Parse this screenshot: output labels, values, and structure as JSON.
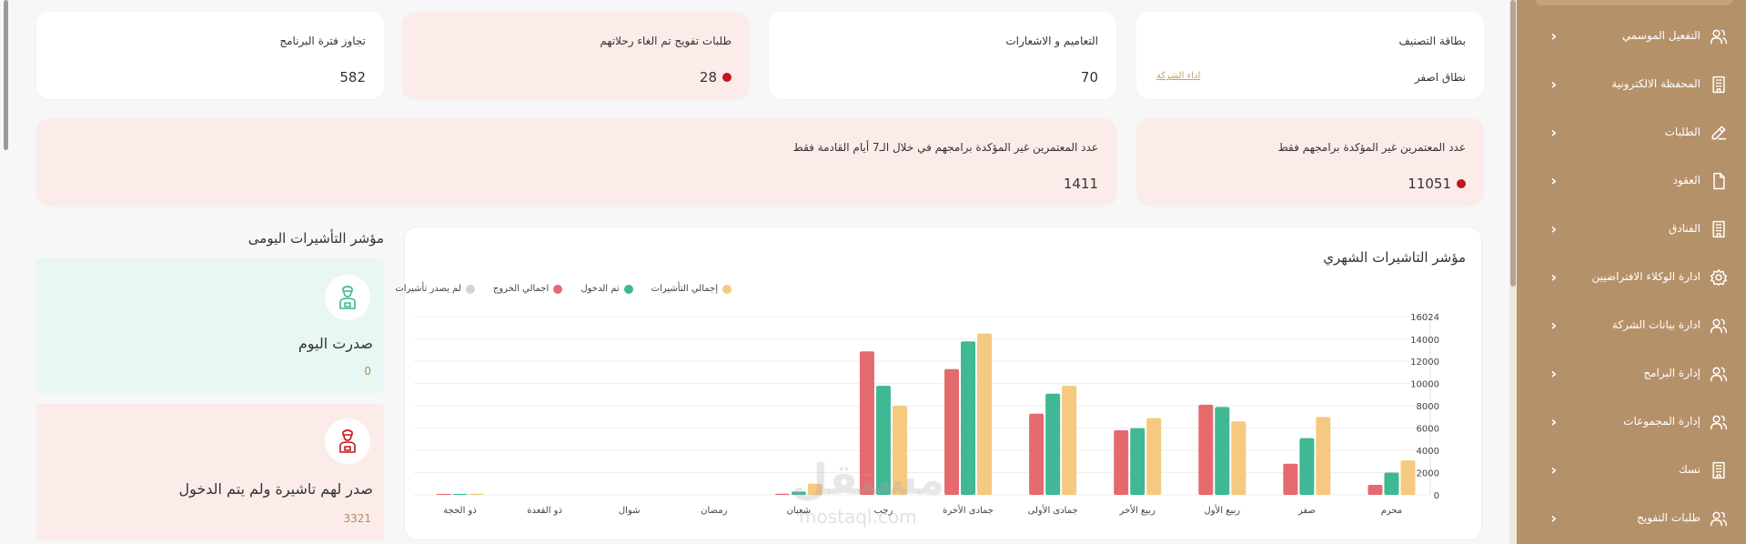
{
  "sidebar": {
    "items": [
      {
        "label": "التفعيل الموسمي",
        "icon": "users-icon"
      },
      {
        "label": "المحفظة الالكترونية",
        "icon": "building-icon"
      },
      {
        "label": "الطلبات",
        "icon": "edit-icon"
      },
      {
        "label": "العقود",
        "icon": "file-icon"
      },
      {
        "label": "الفنادق",
        "icon": "building-icon"
      },
      {
        "label": "ادارة الوكلاء الافتراضيين",
        "icon": "gear-icon"
      },
      {
        "label": "ادارة بيانات الشركة",
        "icon": "users-icon"
      },
      {
        "label": "إدارة البرامج",
        "icon": "users-icon"
      },
      {
        "label": "إدارة المجموعات",
        "icon": "users-icon"
      },
      {
        "label": "نسك",
        "icon": "building-icon"
      },
      {
        "label": "طلبات التفويج",
        "icon": "users-icon"
      }
    ]
  },
  "cards": {
    "classification": {
      "title": "بطاقة التصنيف",
      "value": "نطاق اصفر",
      "link": "اداء الشركة"
    },
    "circulars": {
      "title": "التعاميم و الاشعارات",
      "value": "70"
    },
    "cancel_requests": {
      "title": "طلبات تفويج تم الغاء رحلاتهم",
      "value": "28"
    },
    "exceeded": {
      "title": "تجاوز فترة البرنامج",
      "value": "582"
    },
    "unconfirmed": {
      "title": "عدد المعتمرين غير المؤكدة برامجهم فقط",
      "value": "11051"
    },
    "unconfirmed_7days": {
      "title": "عدد المعتمرين غير المؤكدة برامجهم في خلال الـ7 أيام القادمة فقط",
      "value": "1411"
    }
  },
  "daily": {
    "title": "مؤشر التأشيرات اليومى",
    "issued_today": {
      "title": "صدرت اليوم",
      "value": "0"
    },
    "issued_not_entered": {
      "title": "صدر لهم تاشيرة ولم يتم الدخول",
      "value": "3321"
    }
  },
  "watermark": {
    "text": "مستقل",
    "sub": "mostaql.com"
  },
  "colors": {
    "total": "#f5c97f",
    "entered": "#3fb893",
    "exit": "#e56a6e",
    "not_issued": "#d4d4d4",
    "accent": "#b5916a"
  },
  "chart_data": {
    "type": "bar",
    "title": "مؤشر التاشيرات الشهري",
    "categories": [
      "محرم",
      "صفر",
      "ربيع الأول",
      "ربيع الأخر",
      "جمادى الأولى",
      "جمادى الأخرة",
      "رجب",
      "شعبان",
      "رمضان",
      "شوال",
      "ذو القعدة",
      "ذو الحجة"
    ],
    "series": [
      {
        "name": "اجمالي الخروج",
        "color": "#e56a6e",
        "values": [
          900,
          2800,
          8100,
          5800,
          7300,
          11300,
          12900,
          100,
          0,
          0,
          0,
          50
        ]
      },
      {
        "name": "تم الدخول",
        "color": "#3fb893",
        "values": [
          2000,
          5100,
          7900,
          6000,
          9100,
          13800,
          9800,
          300,
          0,
          0,
          0,
          50
        ]
      },
      {
        "name": "إجمالي التأشيرات",
        "color": "#f5c97f",
        "values": [
          3100,
          7000,
          6600,
          6900,
          9800,
          14500,
          8000,
          1000,
          0,
          0,
          0,
          100
        ]
      }
    ],
    "legend": [
      {
        "name": "إجمالي التأشيرات",
        "color": "#f5c97f"
      },
      {
        "name": "تم الدخول",
        "color": "#3fb893"
      },
      {
        "name": "اجمالي الخروج",
        "color": "#e56a6e"
      },
      {
        "name": "لم يصدر تأشيرات",
        "color": "#d4d4d4"
      }
    ],
    "yticks": [
      "0",
      "2000",
      "4000",
      "6000",
      "8000",
      "10000",
      "12000",
      "14000",
      "16024"
    ],
    "ylim": [
      0,
      16024
    ],
    "legend_position": "top-left",
    "grid": true
  }
}
